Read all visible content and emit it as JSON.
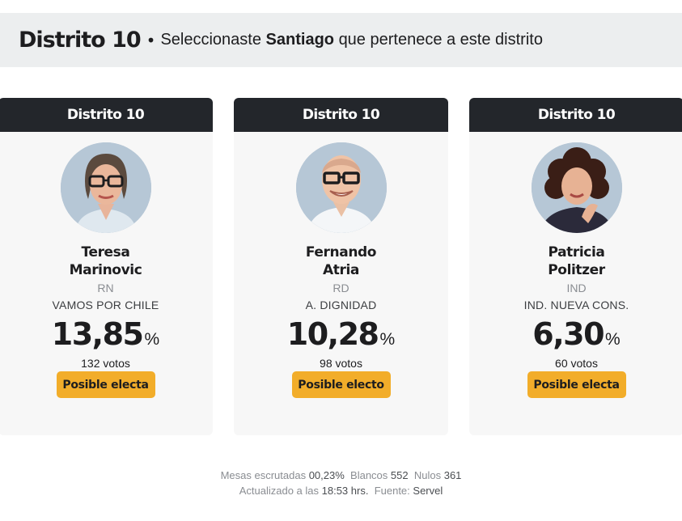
{
  "header": {
    "district": "Distrito 10",
    "bullet": "•",
    "prefix": "Seleccionaste",
    "comuna": "Santiago",
    "suffix": "que pertenece a este distrito"
  },
  "candidates": [
    {
      "district": "Distrito 10",
      "first_name": "Teresa",
      "last_name": "Marinovic",
      "party": "RN",
      "list": "VAMOS POR CHILE",
      "percent": "13,85",
      "percent_sign": "%",
      "votes": "132 votos",
      "badge": "Posible electa",
      "photo_icon": "candidate-photo-woman-glasses"
    },
    {
      "district": "Distrito 10",
      "first_name": "Fernando",
      "last_name": "Atria",
      "party": "RD",
      "list": "A. DIGNIDAD",
      "percent": "10,28",
      "percent_sign": "%",
      "votes": "98 votos",
      "badge": "Posible electo",
      "photo_icon": "candidate-photo-man-glasses"
    },
    {
      "district": "Distrito 10",
      "first_name": "Patricia",
      "last_name": "Politzer",
      "party": "IND",
      "list": "IND. NUEVA CONS.",
      "percent": "6,30",
      "percent_sign": "%",
      "votes": "60 votos",
      "badge": "Posible electa",
      "photo_icon": "candidate-photo-woman-curly-hair"
    }
  ],
  "footer": {
    "mesas_label": "Mesas escrutadas",
    "mesas_value": "00,23%",
    "blancos_label": "Blancos",
    "blancos_value": "552",
    "nulos_label": "Nulos",
    "nulos_value": "361",
    "updated_label": "Actualizado a las",
    "updated_value": "18:53 hrs.",
    "source_label": "Fuente:",
    "source_value": "Servel"
  },
  "colors": {
    "header_bg": "#eceeef",
    "card_head_bg": "#23262b",
    "card_bg": "#f7f7f7",
    "badge_bg": "#f2ad2a",
    "avatar_bg": "#aebfce"
  }
}
